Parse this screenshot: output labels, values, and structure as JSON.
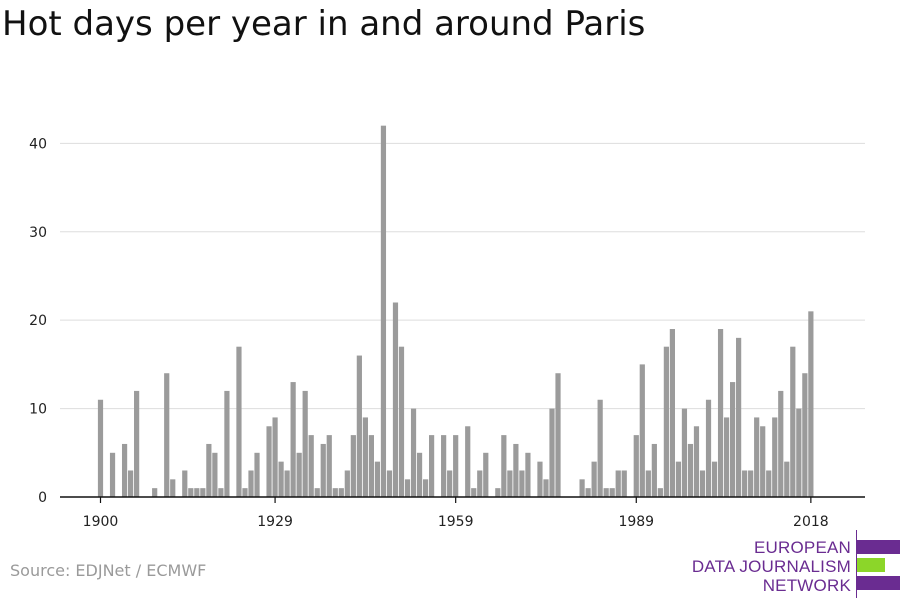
{
  "chart_title": "Hot days per year in and around Paris",
  "source": "Source: EDJNet / ECMWF",
  "logo": {
    "line1": "EUROPEAN",
    "line2": "DATA JOURNALISM",
    "line3": "NETWORK",
    "colors": {
      "purple": "#6a2c91",
      "green": "#8cd629"
    }
  },
  "colors": {
    "bar": "#9b9b9b",
    "grid": "#dddddd",
    "axis": "#111111",
    "text": "#222222"
  },
  "chart_data": {
    "type": "bar",
    "title": "Hot days per year in and around Paris",
    "xlabel": "",
    "ylabel": "",
    "xlim": [
      1894,
      2021
    ],
    "ylim": [
      0,
      44
    ],
    "y_ticks": [
      0,
      10,
      20,
      30,
      40
    ],
    "x_ticks": [
      1900,
      1929,
      1959,
      1989,
      2018
    ],
    "grid": true,
    "categories": [
      1900,
      1901,
      1902,
      1903,
      1904,
      1905,
      1906,
      1907,
      1908,
      1909,
      1910,
      1911,
      1912,
      1913,
      1914,
      1915,
      1916,
      1917,
      1918,
      1919,
      1920,
      1921,
      1922,
      1923,
      1924,
      1925,
      1926,
      1927,
      1928,
      1929,
      1930,
      1931,
      1932,
      1933,
      1934,
      1935,
      1936,
      1937,
      1938,
      1939,
      1940,
      1941,
      1942,
      1943,
      1944,
      1945,
      1946,
      1947,
      1948,
      1949,
      1950,
      1951,
      1952,
      1953,
      1954,
      1955,
      1956,
      1957,
      1958,
      1959,
      1960,
      1961,
      1962,
      1963,
      1964,
      1965,
      1966,
      1967,
      1968,
      1969,
      1970,
      1971,
      1972,
      1973,
      1974,
      1975,
      1976,
      1977,
      1978,
      1979,
      1980,
      1981,
      1982,
      1983,
      1984,
      1985,
      1986,
      1987,
      1988,
      1989,
      1990,
      1991,
      1992,
      1993,
      1994,
      1995,
      1996,
      1997,
      1998,
      1999,
      2000,
      2001,
      2002,
      2003,
      2004,
      2005,
      2006,
      2007,
      2008,
      2009,
      2010,
      2011,
      2012,
      2013,
      2014,
      2015,
      2016,
      2017,
      2018
    ],
    "values": [
      11,
      0,
      5,
      0,
      6,
      3,
      12,
      0,
      0,
      1,
      0,
      14,
      2,
      0,
      3,
      1,
      1,
      1,
      6,
      5,
      1,
      12,
      0,
      17,
      1,
      3,
      5,
      0,
      8,
      9,
      4,
      3,
      13,
      5,
      12,
      7,
      1,
      6,
      7,
      1,
      1,
      3,
      7,
      16,
      9,
      7,
      4,
      42,
      3,
      22,
      17,
      2,
      10,
      5,
      2,
      7,
      0,
      7,
      3,
      7,
      0,
      8,
      1,
      3,
      5,
      0,
      1,
      7,
      3,
      6,
      3,
      5,
      0,
      4,
      2,
      10,
      14,
      0,
      0,
      0,
      2,
      1,
      4,
      11,
      1,
      1,
      3,
      3,
      0,
      7,
      15,
      3,
      6,
      1,
      17,
      19,
      4,
      10,
      6,
      8,
      3,
      11,
      4,
      19,
      9,
      13,
      18,
      3,
      3,
      9,
      8,
      3,
      9,
      12,
      4,
      17,
      10,
      14,
      21
    ]
  }
}
